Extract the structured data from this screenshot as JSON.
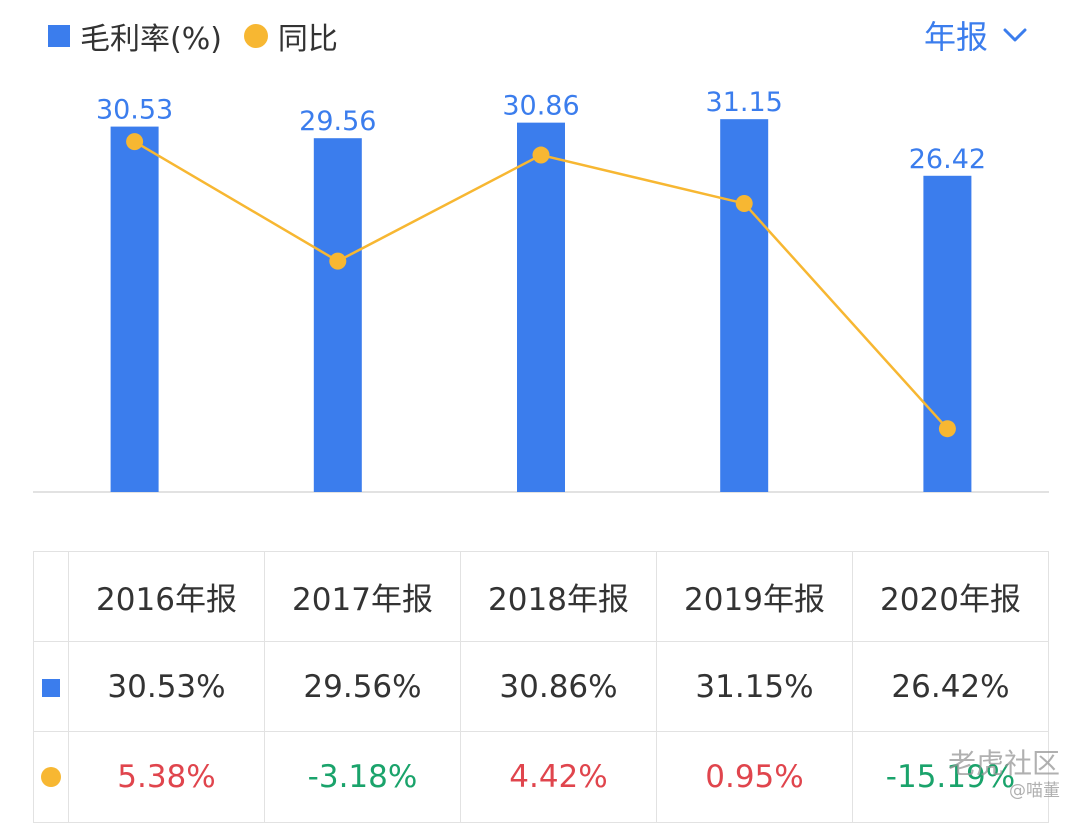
{
  "legend": {
    "bar_label": "毛利率(%)",
    "dot_label": "同比"
  },
  "period_selector": {
    "label": "年报"
  },
  "chart_data": {
    "type": "bar",
    "categories": [
      "2016年报",
      "2017年报",
      "2018年报",
      "2019年报",
      "2020年报"
    ],
    "series": [
      {
        "name": "毛利率(%)",
        "type": "bar",
        "values": [
          30.53,
          29.56,
          30.86,
          31.15,
          26.42
        ],
        "color": "#3b7ded",
        "value_labels": [
          "30.53",
          "29.56",
          "30.86",
          "31.15",
          "26.42"
        ]
      },
      {
        "name": "同比",
        "type": "line",
        "values": [
          5.38,
          -3.18,
          4.42,
          0.95,
          -15.19
        ],
        "color": "#f7b732"
      }
    ],
    "bar_ylim": [
      0,
      32
    ],
    "line_ylim": [
      -16,
      6
    ],
    "grid": false
  },
  "table": {
    "headers": [
      "2016年报",
      "2017年报",
      "2018年报",
      "2019年报",
      "2020年报"
    ],
    "margin_row": [
      "30.53%",
      "29.56%",
      "30.86%",
      "31.15%",
      "26.42%"
    ],
    "yoy_row": [
      "5.38%",
      "-3.18%",
      "4.42%",
      "0.95%",
      "-15.19%"
    ],
    "positive_color": "#e0454d",
    "negative_color": "#1aa36b"
  },
  "watermark": {
    "line1": "老虎社区",
    "line2": "@喵董"
  }
}
